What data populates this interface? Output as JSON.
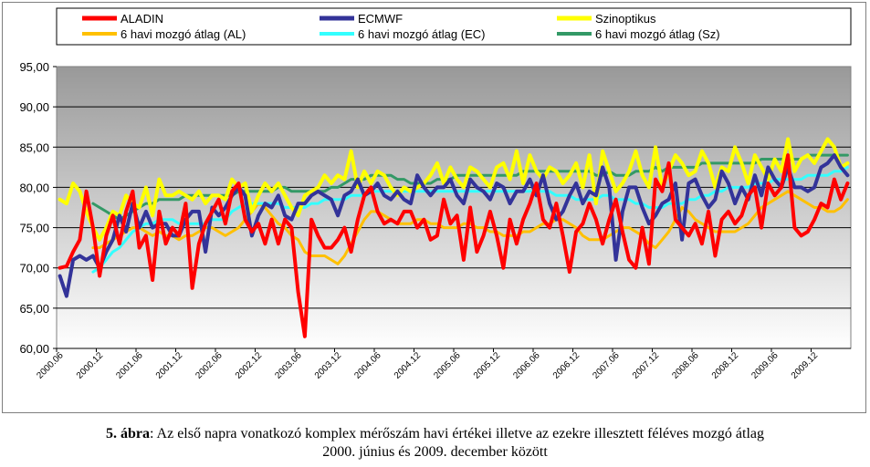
{
  "caption": {
    "label": "5. ábra",
    "text": ": Az első napra vonatkozó komplex mérőszám havi értékei illetve az ezekre illesztett féléves mozgó átlag",
    "line2": "2000. június és 2009. december között"
  },
  "chart_data": {
    "type": "line",
    "ylim": [
      60,
      95
    ],
    "yticks": [
      "60,00",
      "65,00",
      "70,00",
      "75,00",
      "80,00",
      "85,00",
      "90,00",
      "95,00"
    ],
    "ytick_values": [
      60,
      65,
      70,
      75,
      80,
      85,
      90,
      95
    ],
    "x_tick_labels": [
      "2000.06",
      "2000.12",
      "2001.06",
      "2001.12",
      "2002.06",
      "2002.12",
      "2003.06",
      "2003.12",
      "2004.06",
      "2004.12",
      "2005.06",
      "2005.12",
      "2006.06",
      "2006.12",
      "2007.06",
      "2007.12",
      "2008.06",
      "2008.12",
      "2009.06",
      "2009.12"
    ],
    "x_start": "2000.06",
    "x_end": "2009.12",
    "grid": true,
    "legend_position": "top",
    "plot_background": "gradient grey",
    "series": [
      {
        "name": "ALADIN",
        "color": "#ff0000",
        "width": 4,
        "values": [
          70.0,
          70.2,
          72.0,
          73.5,
          79.5,
          75.0,
          69.0,
          74.0,
          76.5,
          73.0,
          77.0,
          79.5,
          72.5,
          74.0,
          68.5,
          77.0,
          73.0,
          75.0,
          74.0,
          78.0,
          67.5,
          73.0,
          75.5,
          77.0,
          78.5,
          75.5,
          79.5,
          80.5,
          76.0,
          74.5,
          75.5,
          73.0,
          76.0,
          73.0,
          76.0,
          75.0,
          67.0,
          61.5,
          76.0,
          74.0,
          72.5,
          72.5,
          73.5,
          75.0,
          72.0,
          76.0,
          79.0,
          80.0,
          77.0,
          75.5,
          76.0,
          75.5,
          77.0,
          77.0,
          75.0,
          76.0,
          73.5,
          74.0,
          78.5,
          75.5,
          76.5,
          71.0,
          77.5,
          72.0,
          74.0,
          77.0,
          74.0,
          70.0,
          76.0,
          73.0,
          76.0,
          78.0,
          80.5,
          76.0,
          75.0,
          78.0,
          74.0,
          69.5,
          74.5,
          75.5,
          78.0,
          76.0,
          73.0,
          76.0,
          78.5,
          74.5,
          71.0,
          70.0,
          75.0,
          70.5,
          81.0,
          79.5,
          83.0,
          76.0,
          75.0,
          74.0,
          75.5,
          73.0,
          77.0,
          71.5,
          76.0,
          77.0,
          75.5,
          76.5,
          79.0,
          80.0,
          75.0,
          80.5,
          79.0,
          80.0,
          84.0,
          75.0,
          74.0,
          74.5,
          76.0,
          78.0,
          77.5,
          81.0,
          78.5,
          80.5
        ]
      },
      {
        "name": "ECMWF",
        "color": "#333399",
        "width": 4,
        "values": [
          69.0,
          66.5,
          71.0,
          71.5,
          71.0,
          71.5,
          70.0,
          72.0,
          73.5,
          76.5,
          74.5,
          78.0,
          75.0,
          77.0,
          75.0,
          75.5,
          75.5,
          74.0,
          74.0,
          76.0,
          77.0,
          77.0,
          72.0,
          77.5,
          76.5,
          77.5,
          79.0,
          80.0,
          79.0,
          74.0,
          76.5,
          78.0,
          77.5,
          79.0,
          76.5,
          76.0,
          78.0,
          78.0,
          79.0,
          79.5,
          79.0,
          78.5,
          76.5,
          79.0,
          79.5,
          81.0,
          79.0,
          79.5,
          80.5,
          79.0,
          78.5,
          79.5,
          78.5,
          78.0,
          81.5,
          80.0,
          79.0,
          80.0,
          80.0,
          81.0,
          79.0,
          78.0,
          81.0,
          80.0,
          79.5,
          78.5,
          80.5,
          80.0,
          78.0,
          79.5,
          79.5,
          81.0,
          79.0,
          81.5,
          78.0,
          76.0,
          77.0,
          79.0,
          80.5,
          78.0,
          79.5,
          79.0,
          82.5,
          80.0,
          71.0,
          77.0,
          80.0,
          80.0,
          77.5,
          75.5,
          76.5,
          78.0,
          78.5,
          80.5,
          73.5,
          80.5,
          81.0,
          79.0,
          77.5,
          78.5,
          82.0,
          80.5,
          78.0,
          80.0,
          78.5,
          81.5,
          79.0,
          82.5,
          81.0,
          80.0,
          82.5,
          80.0,
          80.0,
          79.5,
          80.0,
          82.5,
          83.0,
          84.0,
          82.5,
          81.5
        ]
      },
      {
        "name": "Szinoptikus",
        "color": "#ffff00",
        "width": 4,
        "values": [
          78.5,
          78.0,
          80.5,
          79.5,
          77.0,
          75.0,
          73.5,
          75.0,
          77.0,
          76.5,
          79.0,
          78.0,
          77.5,
          80.0,
          76.5,
          81.0,
          79.0,
          79.0,
          79.5,
          79.0,
          78.5,
          79.5,
          78.0,
          79.0,
          79.0,
          78.5,
          81.0,
          80.0,
          80.5,
          77.0,
          79.0,
          80.5,
          79.5,
          80.5,
          79.0,
          77.5,
          76.5,
          79.0,
          79.5,
          80.0,
          81.5,
          80.5,
          81.5,
          81.0,
          84.5,
          80.0,
          82.0,
          80.5,
          82.0,
          81.5,
          80.0,
          79.0,
          80.0,
          79.5,
          80.0,
          80.5,
          81.5,
          83.0,
          80.5,
          82.5,
          81.0,
          80.0,
          82.5,
          82.0,
          81.0,
          80.0,
          82.5,
          83.0,
          81.0,
          84.5,
          80.5,
          84.0,
          82.0,
          81.0,
          82.5,
          82.0,
          80.5,
          81.5,
          83.0,
          80.0,
          84.0,
          78.0,
          84.5,
          82.0,
          79.5,
          80.5,
          82.0,
          84.5,
          81.5,
          80.0,
          85.0,
          80.0,
          82.0,
          84.0,
          83.0,
          81.5,
          82.0,
          84.5,
          83.0,
          80.0,
          82.5,
          82.0,
          85.0,
          83.0,
          80.5,
          84.0,
          82.5,
          81.0,
          83.5,
          82.0,
          86.0,
          82.0,
          83.5,
          84.0,
          83.0,
          84.5,
          86.0,
          85.0,
          82.5,
          83.0
        ]
      },
      {
        "name": "6 havi mozgó átlag (AL)",
        "color": "#ffc000",
        "width": 3,
        "values": [
          null,
          null,
          null,
          null,
          null,
          72.5,
          72.5,
          73.0,
          73.5,
          74.0,
          74.5,
          75.0,
          75.0,
          74.5,
          74.0,
          74.5,
          74.0,
          74.0,
          73.5,
          74.0,
          74.0,
          74.5,
          75.0,
          75.0,
          74.5,
          74.0,
          74.5,
          75.0,
          76.0,
          77.0,
          78.0,
          77.5,
          76.5,
          75.5,
          75.0,
          74.0,
          73.5,
          72.0,
          71.5,
          71.5,
          71.5,
          71.0,
          70.5,
          71.5,
          73.0,
          74.5,
          76.0,
          77.0,
          77.0,
          76.5,
          76.0,
          75.5,
          75.5,
          75.5,
          76.0,
          76.0,
          75.5,
          75.5,
          75.0,
          75.0,
          75.0,
          75.5,
          75.5,
          75.0,
          75.0,
          74.5,
          74.5,
          74.0,
          74.0,
          74.0,
          74.5,
          74.5,
          75.0,
          75.5,
          75.5,
          76.0,
          76.0,
          75.5,
          75.0,
          74.0,
          73.5,
          73.5,
          73.5,
          74.0,
          74.5,
          75.0,
          75.0,
          74.5,
          74.0,
          73.0,
          72.5,
          73.5,
          74.5,
          76.0,
          77.5,
          77.0,
          76.0,
          75.5,
          75.0,
          74.5,
          74.5,
          74.5,
          74.5,
          75.0,
          75.5,
          76.5,
          77.5,
          78.0,
          78.5,
          79.0,
          79.5,
          79.0,
          78.5,
          78.0,
          77.5,
          77.5,
          77.0,
          77.0,
          77.5,
          78.5
        ]
      },
      {
        "name": "6 havi mozgó átlag (EC)",
        "color": "#33ffff",
        "width": 3,
        "values": [
          null,
          null,
          null,
          null,
          null,
          69.5,
          70.0,
          71.0,
          72.0,
          72.5,
          73.5,
          74.5,
          75.0,
          75.5,
          75.5,
          76.0,
          76.0,
          76.0,
          75.5,
          75.5,
          75.5,
          75.5,
          75.5,
          76.0,
          76.0,
          76.0,
          77.0,
          77.5,
          78.0,
          78.0,
          78.0,
          78.0,
          78.0,
          78.0,
          77.5,
          77.5,
          77.5,
          77.5,
          78.0,
          78.0,
          78.5,
          78.5,
          78.5,
          78.5,
          79.0,
          79.0,
          79.0,
          79.5,
          79.5,
          79.5,
          79.5,
          79.5,
          79.5,
          79.5,
          79.5,
          79.5,
          79.5,
          79.5,
          79.5,
          79.5,
          79.5,
          79.5,
          79.5,
          79.5,
          79.5,
          79.5,
          79.5,
          79.5,
          79.5,
          79.5,
          79.5,
          79.5,
          79.5,
          79.5,
          79.5,
          79.0,
          79.0,
          79.0,
          78.5,
          78.5,
          78.5,
          78.5,
          79.0,
          79.0,
          78.5,
          78.5,
          78.5,
          78.0,
          78.0,
          77.5,
          77.5,
          77.5,
          78.0,
          78.0,
          78.0,
          78.5,
          78.5,
          79.0,
          79.0,
          79.5,
          79.5,
          80.0,
          80.0,
          80.0,
          80.0,
          80.5,
          80.5,
          80.5,
          81.0,
          81.0,
          81.0,
          81.0,
          81.0,
          81.5,
          81.5,
          81.5,
          81.5,
          82.0,
          82.0,
          82.5
        ]
      },
      {
        "name": "6 havi mozgó átlag (Sz)",
        "color": "#339966",
        "width": 3,
        "values": [
          null,
          null,
          null,
          null,
          null,
          78.0,
          77.5,
          77.0,
          76.5,
          76.0,
          76.5,
          77.0,
          77.5,
          78.0,
          78.0,
          78.5,
          78.5,
          78.5,
          78.5,
          79.0,
          79.0,
          79.0,
          79.0,
          79.0,
          79.0,
          79.0,
          79.0,
          79.5,
          79.5,
          79.5,
          79.5,
          79.5,
          79.5,
          80.0,
          80.0,
          79.5,
          79.5,
          79.5,
          79.5,
          79.5,
          79.5,
          80.0,
          80.0,
          80.5,
          81.0,
          81.0,
          81.0,
          81.5,
          81.5,
          81.5,
          81.5,
          81.0,
          81.0,
          80.5,
          80.5,
          80.5,
          80.5,
          81.0,
          81.0,
          81.0,
          81.5,
          81.5,
          81.5,
          81.5,
          81.5,
          81.5,
          81.5,
          81.5,
          81.5,
          81.5,
          82.0,
          82.0,
          82.0,
          82.0,
          82.0,
          82.0,
          82.0,
          82.0,
          82.0,
          82.0,
          82.0,
          81.5,
          81.5,
          82.0,
          81.5,
          81.5,
          81.5,
          82.0,
          82.0,
          82.0,
          82.5,
          82.0,
          82.5,
          82.5,
          82.5,
          82.5,
          82.5,
          83.0,
          83.0,
          83.0,
          83.0,
          83.0,
          83.0,
          83.0,
          83.0,
          83.0,
          83.5,
          83.5,
          83.5,
          83.5,
          83.5,
          83.5,
          83.5,
          84.0,
          84.0,
          84.0,
          84.0,
          84.0,
          84.0,
          84.0
        ]
      }
    ]
  }
}
